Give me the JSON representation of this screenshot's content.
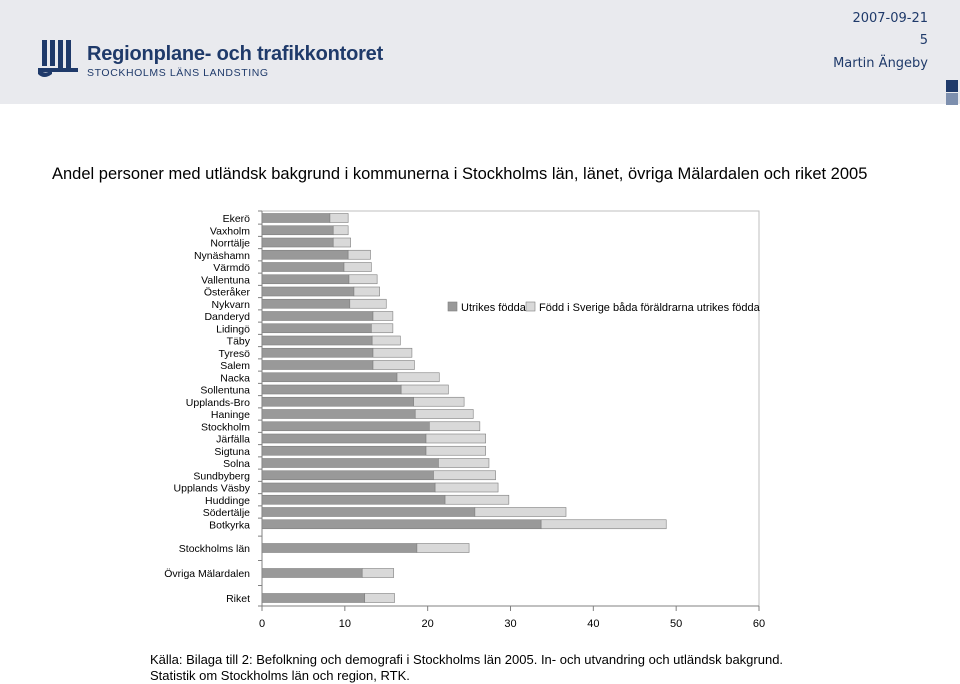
{
  "header": {
    "org_name": "Regionplane- och trafikkontoret",
    "org_sub": "STOCKHOLMS LÄNS LANDSTING",
    "date": "2007-09-21",
    "page": "5",
    "author": "Martin Ängeby",
    "brand_color": "#1f3a6a"
  },
  "title": "Andel personer med utländsk bakgrund i kommunerna i Stockholms län, länet, övriga Mälardalen och riket 2005",
  "source": {
    "line1": "Källa: Bilaga till 2: Befolkning och demografi i Stockholms län 2005. In- och utvandring och utländsk bakgrund.",
    "line2": "Statistik om Stockholms län och region, RTK."
  },
  "chart_data": {
    "type": "bar",
    "orientation": "horizontal",
    "stacked": true,
    "title": "",
    "xlabel": "",
    "ylabel": "",
    "xlim": [
      0,
      60
    ],
    "xticks": [
      0,
      10,
      20,
      30,
      40,
      50,
      60
    ],
    "grid": false,
    "legend_position": "top-right",
    "categories": [
      "Ekerö",
      "Vaxholm",
      "Norrtälje",
      "Nynäshamn",
      "Värmdö",
      "Vallentuna",
      "Österåker",
      "Nykvarn",
      "Danderyd",
      "Lidingö",
      "Täby",
      "Tyresö",
      "Salem",
      "Nacka",
      "Sollentuna",
      "Upplands-Bro",
      "Haninge",
      "Stockholm",
      "Järfälla",
      "Sigtuna",
      "Solna",
      "Sundbyberg",
      "Upplands Väsby",
      "Huddinge",
      "Södertälje",
      "Botkyrka",
      "Stockholms län",
      "Övriga Mälardalen",
      "Riket"
    ],
    "series": [
      {
        "name": "Utrikes födda",
        "color": "#999999",
        "values": [
          8.2,
          8.6,
          8.6,
          10.4,
          9.9,
          10.5,
          11.1,
          10.6,
          13.4,
          13.2,
          13.3,
          13.4,
          13.4,
          16.3,
          16.8,
          18.3,
          18.5,
          20.2,
          19.8,
          19.8,
          21.3,
          20.7,
          20.9,
          22.1,
          25.7,
          33.7,
          18.7,
          12.1,
          12.4
        ]
      },
      {
        "name": "Född i Sverige båda föräldrarna utrikes födda",
        "color": "#d9d9d9",
        "values": [
          2.2,
          1.8,
          2.1,
          2.7,
          3.3,
          3.4,
          3.1,
          4.4,
          2.4,
          2.6,
          3.4,
          4.7,
          5.0,
          5.1,
          5.7,
          6.1,
          7.0,
          6.1,
          7.2,
          7.2,
          6.1,
          7.5,
          7.6,
          7.7,
          11.0,
          15.1,
          6.3,
          3.8,
          3.6
        ]
      }
    ]
  }
}
